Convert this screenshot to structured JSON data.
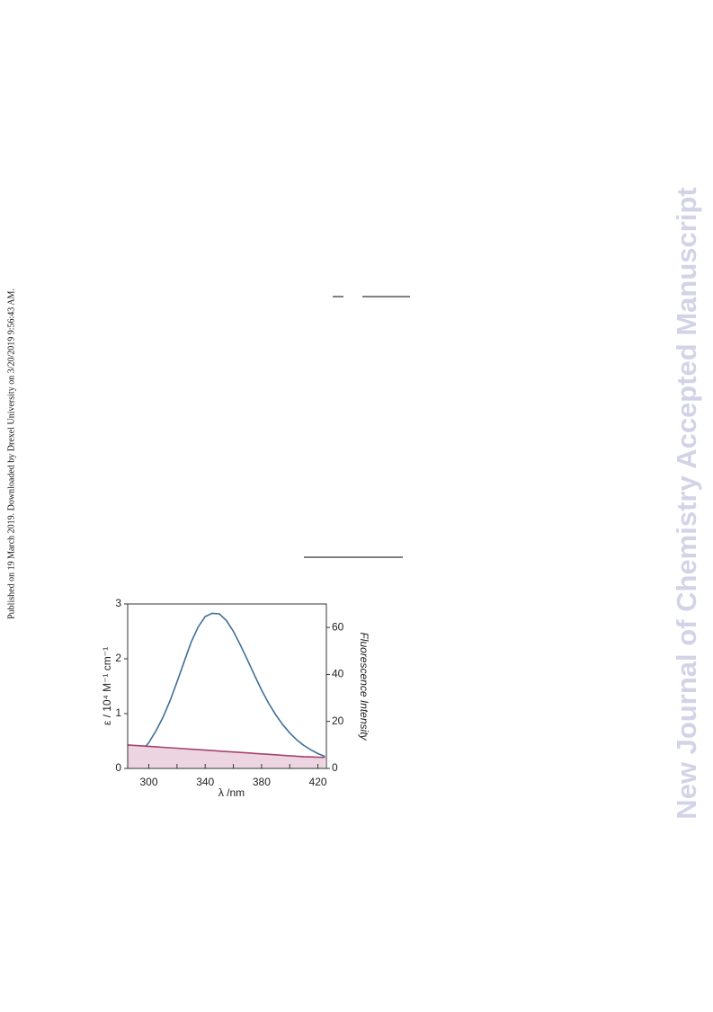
{
  "sidebar": "Published on 19 March 2019. Downloaded by Drexel University on 3/20/2019 9:56:43 AM.",
  "watermark": "New Journal of Chemistry Accepted Manuscript",
  "chart_data": {
    "type": "line",
    "xlabel": "λ /nm",
    "ylabel": "ε / 10⁴ M⁻¹ cm⁻¹",
    "y2label": "Fluorescence Intensity",
    "x": [
      285,
      290,
      295,
      300,
      305,
      310,
      315,
      320,
      325,
      330,
      335,
      340,
      345,
      350,
      355,
      360,
      365,
      370,
      375,
      380,
      385,
      390,
      395,
      400,
      405,
      410,
      415,
      420,
      425
    ],
    "series": [
      {
        "color": "#3f6f97",
        "values": [
          0.22,
          0.22,
          0.32,
          0.47,
          0.68,
          0.93,
          1.23,
          1.58,
          1.94,
          2.3,
          2.58,
          2.77,
          2.83,
          2.82,
          2.7,
          2.5,
          2.25,
          1.98,
          1.7,
          1.43,
          1.19,
          0.98,
          0.8,
          0.65,
          0.52,
          0.42,
          0.34,
          0.27,
          0.22
        ]
      },
      {
        "color": "#a8416f",
        "fill": "#ecd5e1",
        "axis": "y2",
        "values": [
          10,
          9.8,
          9.6,
          9.4,
          9.2,
          9.0,
          8.8,
          8.6,
          8.4,
          8.2,
          8.0,
          7.8,
          7.6,
          7.4,
          7.2,
          7.0,
          6.8,
          6.6,
          6.4,
          6.2,
          6.0,
          5.8,
          5.6,
          5.4,
          5.2,
          5.0,
          4.9,
          4.8,
          4.7
        ]
      }
    ],
    "xlim": [
      285,
      426
    ],
    "xticks": [
      300,
      340,
      380,
      420
    ],
    "xminorticks": [
      320,
      360,
      400
    ],
    "ylim": [
      0,
      3
    ],
    "yticks": [
      0,
      1,
      2,
      3
    ],
    "y2lim": [
      0,
      70
    ],
    "y2ticks": [
      0,
      20,
      40,
      60
    ]
  }
}
